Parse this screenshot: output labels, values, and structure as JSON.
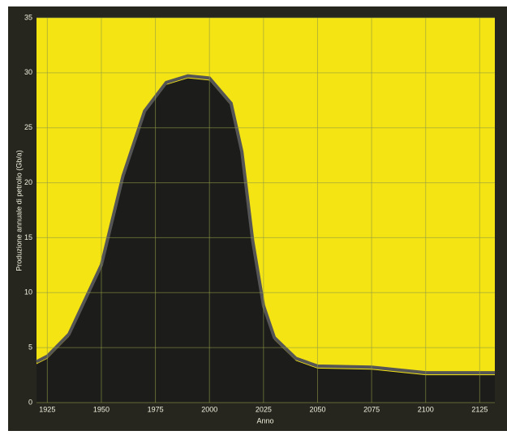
{
  "chart_data": {
    "type": "area",
    "x_label": "Anno",
    "y_label": "Produzione annuale di petrolio (Gb/a)",
    "x": [
      1920,
      1925,
      1935,
      1950,
      1960,
      1970,
      1980,
      1990,
      2000,
      2010,
      2015,
      2020,
      2025,
      2030,
      2040,
      2050,
      2075,
      2100,
      2125,
      2132
    ],
    "values": [
      3.5,
      4,
      6,
      12.3,
      20.4,
      26.3,
      28.9,
      29.5,
      29.3,
      27,
      22.6,
      14.5,
      8.6,
      5.7,
      3.8,
      3.1,
      3,
      2.5,
      2.5,
      2.5
    ],
    "color": "#1c1c1a",
    "background": "#f4e413",
    "grid": true,
    "grid_color": "#8f9a45",
    "xlim": [
      1920,
      2132
    ],
    "xticks": [
      1925,
      1950,
      1975,
      2000,
      2025,
      2050,
      2075,
      2100,
      2125
    ],
    "ylim": [
      0,
      35
    ],
    "yticks": [
      0,
      5,
      10,
      15,
      20,
      25,
      30,
      35
    ]
  }
}
